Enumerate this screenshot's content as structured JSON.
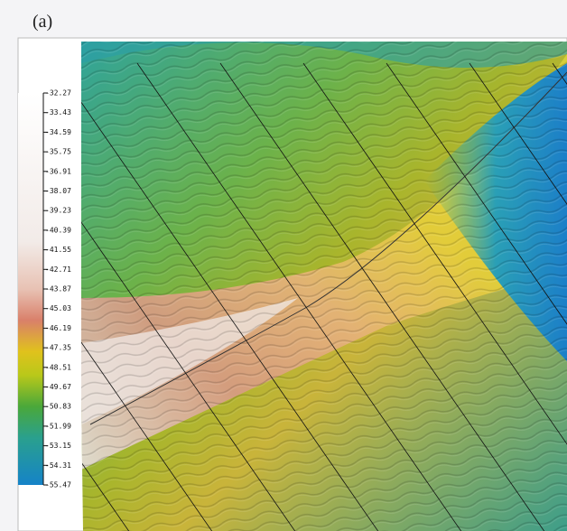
{
  "panel_label": "(a)",
  "colorbar": {
    "range": [
      -32.27,
      -55.47
    ],
    "ticks": [
      -32.27,
      -33.43,
      -34.59,
      -35.75,
      -36.91,
      -38.07,
      -39.23,
      -40.39,
      -41.55,
      -42.71,
      -43.87,
      -45.03,
      -46.19,
      -47.35,
      -48.51,
      -49.67,
      -50.83,
      -51.99,
      -53.15,
      -54.31,
      -55.47
    ]
  }
}
